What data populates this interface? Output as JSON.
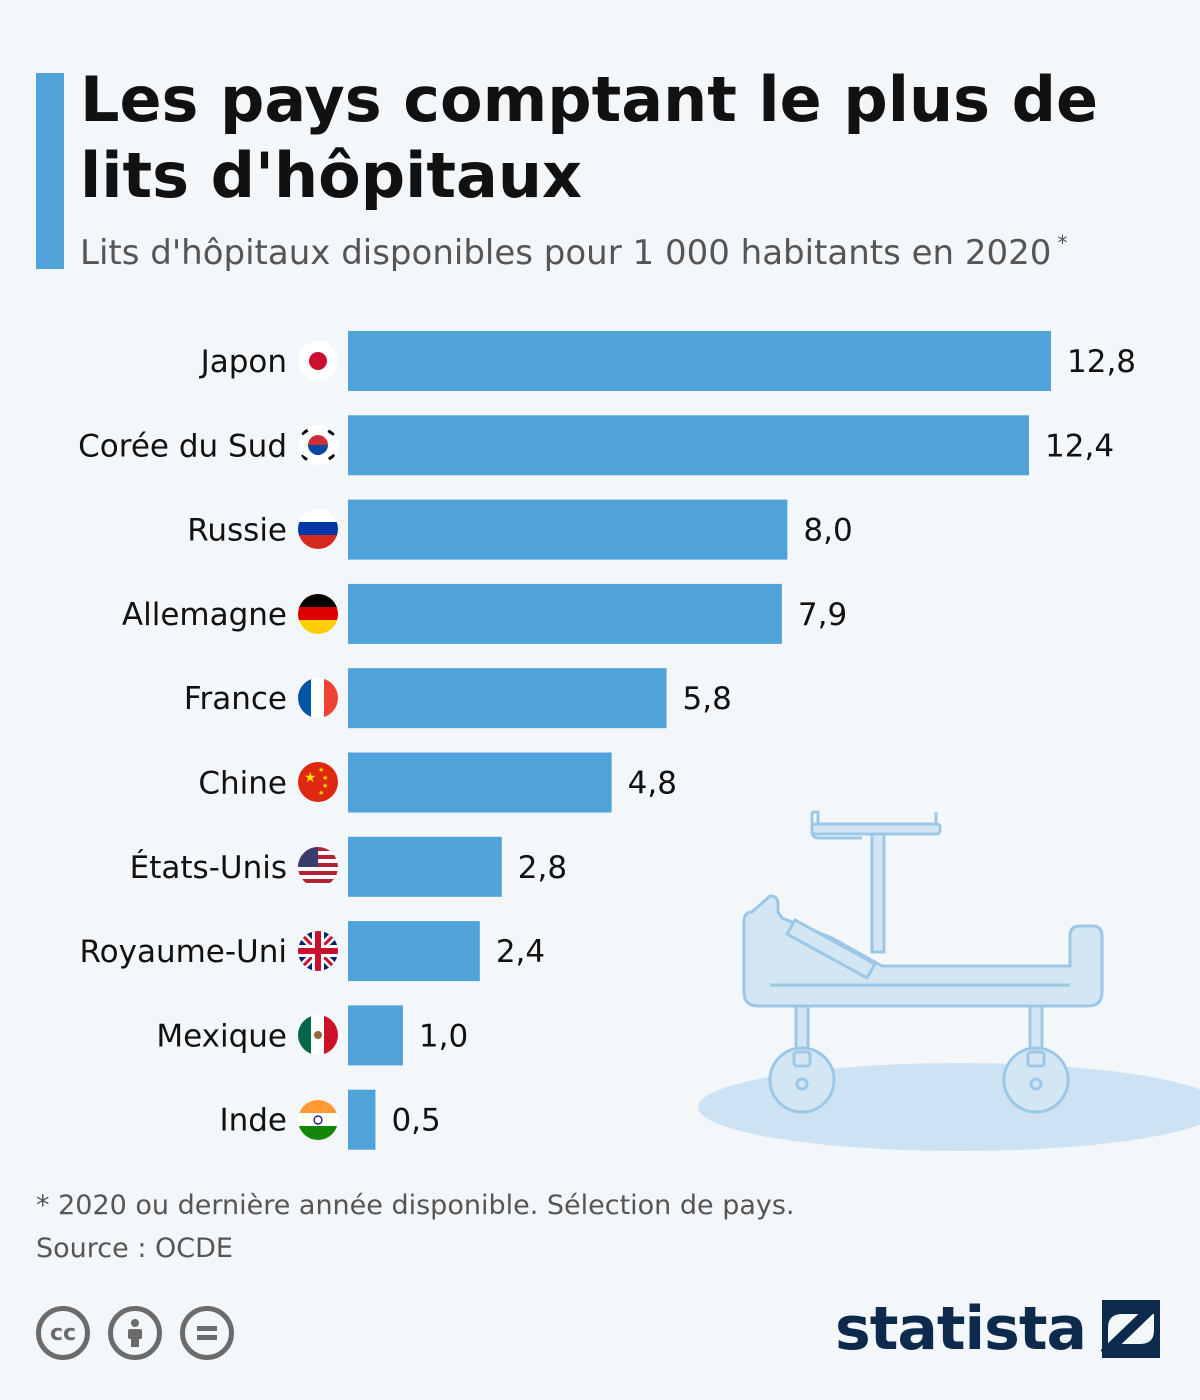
{
  "header": {
    "title": "Les pays comptant le plus de lits d'hôpitaux",
    "subtitle": "Lits d'hôpitaux disponibles pour 1 000 habitants en 2020",
    "subtitle_marker": "*"
  },
  "footer": {
    "note": "* 2020 ou dernière année disponible. Sélection de pays.",
    "source": "Source : OCDE",
    "brand": "statista",
    "license_icons": [
      "cc-icon",
      "attribution-icon",
      "no-derivatives-icon"
    ]
  },
  "colors": {
    "bar": "#4fa3d8",
    "accent": "#4fa3d8",
    "illustration": "#cde3f3",
    "brand": "#0d2a4d"
  },
  "chart_data": {
    "type": "bar",
    "orientation": "horizontal",
    "categories": [
      "Japon",
      "Corée du Sud",
      "Russie",
      "Allemagne",
      "France",
      "Chine",
      "États-Unis",
      "Royaume-Uni",
      "Mexique",
      "Inde"
    ],
    "values": [
      12.8,
      12.4,
      8.0,
      7.9,
      5.8,
      4.8,
      2.8,
      2.4,
      1.0,
      0.5
    ],
    "value_labels": [
      "12,8",
      "12,4",
      "8,0",
      "7,9",
      "5,8",
      "4,8",
      "2,8",
      "2,4",
      "1,0",
      "0,5"
    ],
    "flags": [
      "japan-flag-icon",
      "south-korea-flag-icon",
      "russia-flag-icon",
      "germany-flag-icon",
      "france-flag-icon",
      "china-flag-icon",
      "usa-flag-icon",
      "uk-flag-icon",
      "mexico-flag-icon",
      "india-flag-icon"
    ],
    "xlim": [
      0,
      12.8
    ],
    "grid": false,
    "legend": "none"
  }
}
